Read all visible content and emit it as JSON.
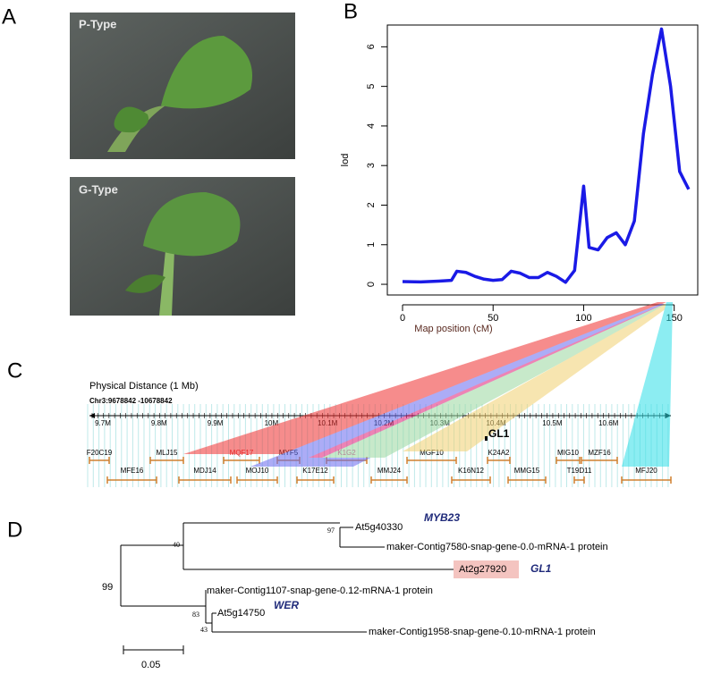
{
  "panel_labels": [
    "A",
    "B",
    "C",
    "D"
  ],
  "photos": [
    {
      "label": "P-Type"
    },
    {
      "label": "G-Type"
    }
  ],
  "chart_data": {
    "type": "line",
    "x_label": "Map position (cM)",
    "y_label": "lod",
    "x": [
      0,
      10,
      20,
      27,
      30,
      35,
      40,
      45,
      50,
      55,
      60,
      65,
      70,
      75,
      80,
      85,
      90,
      95,
      100,
      103,
      108,
      113,
      118,
      123,
      128,
      133,
      138,
      143,
      148,
      153,
      158
    ],
    "series": [
      {
        "name": "lod",
        "color": "#1a1ae6",
        "values": [
          0.07,
          0.06,
          0.08,
          0.1,
          0.33,
          0.3,
          0.2,
          0.13,
          0.1,
          0.12,
          0.33,
          0.28,
          0.17,
          0.17,
          0.3,
          0.2,
          0.05,
          0.35,
          2.48,
          0.93,
          0.87,
          1.18,
          1.3,
          1.0,
          1.6,
          3.8,
          5.3,
          6.45,
          5.0,
          2.85,
          2.4
        ]
      }
    ],
    "xlim": [
      -8.4,
      163
    ],
    "xticks": [
      0,
      50,
      100,
      150
    ],
    "ylim": [
      -0.27,
      6.55
    ],
    "yticks": [
      0,
      1,
      2,
      3,
      4,
      5,
      6
    ]
  },
  "physical_map": {
    "title": "Physical  Distance (1 Mb)",
    "region": "Chr3:9678842 -10678842",
    "scale_labels": [
      "9.7M",
      "9.8M",
      "9.9M",
      "10M",
      "10.1M",
      "10.2M",
      "10.3M",
      "10.4M",
      "10.5M",
      "10.6M"
    ],
    "gene": "GL1",
    "clones_top": [
      "F20C19",
      "MLJ15",
      "MQF17",
      "MYF5",
      "K1G2",
      "MGF10",
      "K24A2",
      "MIG10",
      "MZF16"
    ],
    "clones_bottom": [
      "MFE16",
      "MDJ14",
      "MOJ10",
      "K17E12",
      "MMJ24",
      "K16N12",
      "MMG15",
      "T19D11",
      "MFJ20"
    ]
  },
  "tree": {
    "leaves": [
      {
        "id": "At5g40330",
        "gene": "MYB23"
      },
      {
        "id": "maker-Contig7580-snap-gene-0.0-mRNA-1 protein"
      },
      {
        "id": "At2g27920",
        "gene": "GL1"
      },
      {
        "id": "maker-Contig1107-snap-gene-0.12-mRNA-1 protein"
      },
      {
        "id": "At5g14750",
        "gene": "WER"
      },
      {
        "id": "maker-Contig1958-snap-gene-0.10-mRNA-1 protein"
      }
    ],
    "bootstrap": [
      97,
      40,
      99,
      83,
      43
    ],
    "scale": "0.05"
  }
}
